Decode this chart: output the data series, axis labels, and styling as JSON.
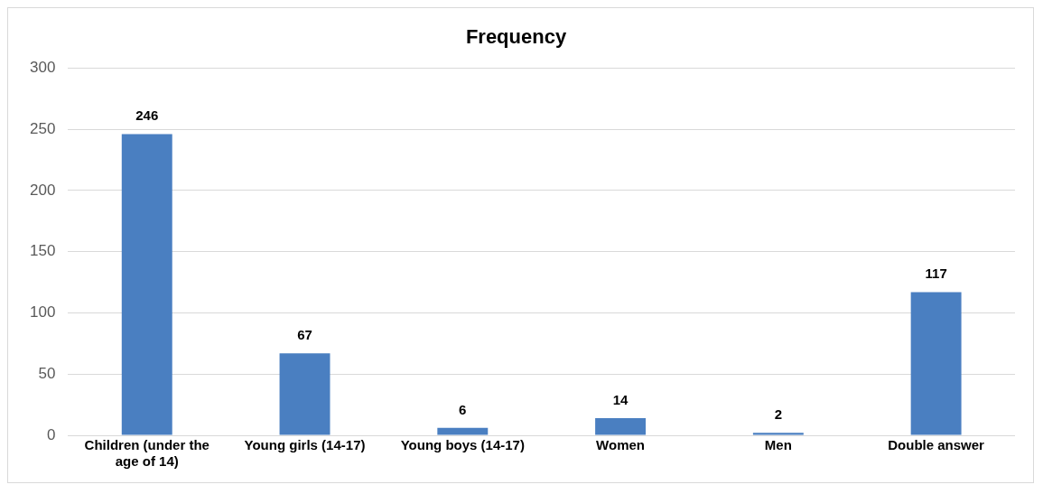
{
  "chart_data": {
    "type": "bar",
    "title": "Frequency",
    "categories": [
      "Children (under the age of 14)",
      "Young girls (14-17)",
      "Young boys (14-17)",
      "Women",
      "Men",
      "Double answer"
    ],
    "values": [
      246,
      67,
      6,
      14,
      2,
      117
    ],
    "color": "#4a7fc1",
    "ylim": [
      0,
      300
    ],
    "yticks": [
      0,
      50,
      100,
      150,
      200,
      250,
      300
    ],
    "grid": "y",
    "data_labels": true,
    "legend": false
  }
}
